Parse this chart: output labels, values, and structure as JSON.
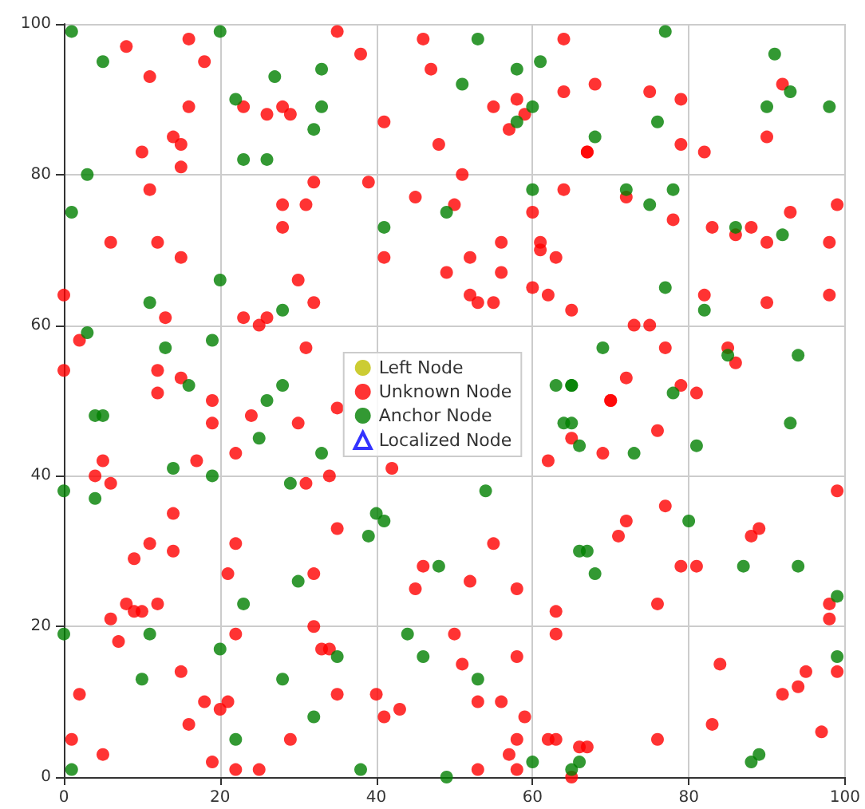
{
  "chart_data": {
    "type": "scatter",
    "xlim": [
      0,
      100
    ],
    "ylim": [
      0,
      100
    ],
    "xticks": [
      0,
      20,
      40,
      60,
      80,
      100
    ],
    "yticks": [
      0,
      20,
      40,
      60,
      80,
      100
    ],
    "grid": true,
    "legend": "center",
    "marker": "circle",
    "series": [
      {
        "name": "Left Node",
        "color": "#bfbf00"
      },
      {
        "name": "Unknown Node",
        "color": "#ff0000",
        "x": [
          8,
          16,
          18,
          11,
          16,
          14,
          15,
          10,
          15,
          23,
          26,
          28,
          29,
          11,
          28,
          31,
          32,
          6,
          12,
          28,
          15,
          30,
          0,
          32,
          13,
          23,
          25,
          26,
          2,
          0,
          31,
          12,
          15,
          12,
          19,
          35,
          38,
          46,
          47,
          55,
          58,
          64,
          64,
          59,
          57,
          41,
          48,
          67,
          39,
          51,
          45,
          50,
          64,
          60,
          41,
          56,
          61,
          61,
          52,
          63,
          49,
          56,
          60,
          62,
          52,
          53,
          55,
          65,
          70,
          68,
          75,
          79,
          67,
          79,
          82,
          92,
          90,
          72,
          78,
          83,
          86,
          88,
          90,
          93,
          99,
          98,
          82,
          90,
          98,
          73,
          75,
          77,
          85,
          86,
          72,
          70,
          79,
          81,
          19,
          24,
          30,
          22,
          5,
          17,
          4,
          6,
          31,
          14,
          11,
          22,
          14,
          9,
          21,
          32,
          8,
          9,
          10,
          12,
          6,
          7,
          22,
          32,
          15,
          2,
          18,
          21,
          20,
          16,
          1,
          29,
          5,
          19,
          22,
          25,
          35,
          34,
          42,
          35,
          55,
          46,
          45,
          52,
          58,
          63,
          63,
          50,
          33,
          34,
          51,
          58,
          35,
          40,
          41,
          43,
          53,
          56,
          59,
          58,
          62,
          63,
          66,
          57,
          58,
          53,
          65,
          65,
          62,
          69,
          76,
          99,
          77,
          72,
          71,
          88,
          89,
          79,
          81,
          76,
          98,
          98,
          99,
          84,
          95,
          94,
          92,
          83,
          76,
          97,
          67
        ],
        "values": [
          97,
          98,
          95,
          93,
          89,
          85,
          84,
          83,
          81,
          89,
          88,
          89,
          88,
          78,
          76,
          76,
          79,
          71,
          71,
          73,
          69,
          66,
          64,
          63,
          61,
          61,
          60,
          61,
          58,
          54,
          57,
          54,
          53,
          51,
          50,
          99,
          96,
          98,
          94,
          89,
          90,
          98,
          91,
          88,
          86,
          87,
          84,
          83,
          79,
          80,
          77,
          76,
          78,
          75,
          69,
          71,
          71,
          70,
          69,
          69,
          67,
          67,
          65,
          64,
          64,
          63,
          63,
          62,
          50,
          92,
          91,
          90,
          83,
          84,
          83,
          92,
          85,
          77,
          74,
          73,
          72,
          73,
          71,
          75,
          76,
          71,
          64,
          63,
          64,
          60,
          60,
          57,
          57,
          55,
          53,
          50,
          52,
          51,
          47,
          48,
          47,
          43,
          42,
          42,
          40,
          39,
          39,
          35,
          31,
          31,
          30,
          29,
          27,
          27,
          23,
          22,
          22,
          23,
          21,
          18,
          19,
          20,
          14,
          11,
          10,
          10,
          9,
          7,
          5,
          5,
          3,
          2,
          1,
          1,
          49,
          40,
          41,
          33,
          31,
          28,
          25,
          26,
          25,
          22,
          19,
          19,
          17,
          17,
          15,
          16,
          11,
          11,
          8,
          9,
          10,
          10,
          8,
          5,
          5,
          5,
          4,
          3,
          1,
          1,
          0,
          45,
          42,
          43,
          46,
          38,
          36,
          34,
          32,
          32,
          33,
          28,
          28,
          23,
          23,
          21,
          14,
          15,
          14,
          12,
          11,
          7,
          5,
          6,
          4
        ]
      },
      {
        "name": "Anchor Node",
        "color": "#008000",
        "x": [
          1,
          5,
          3,
          1,
          20,
          22,
          23,
          26,
          27,
          33,
          33,
          32,
          20,
          11,
          28,
          3,
          13,
          19,
          16,
          28,
          26,
          53,
          51,
          58,
          61,
          60,
          58,
          49,
          60,
          41,
          77,
          76,
          68,
          91,
          93,
          90,
          98,
          72,
          75,
          78,
          86,
          92,
          77,
          82,
          69,
          85,
          94,
          65,
          78,
          4,
          5,
          25,
          33,
          14,
          19,
          0,
          4,
          29,
          30,
          23,
          0,
          11,
          20,
          10,
          28,
          32,
          22,
          1,
          54,
          40,
          41,
          39,
          48,
          44,
          35,
          46,
          53,
          38,
          49,
          60,
          65,
          66,
          63,
          65,
          64,
          65,
          66,
          66,
          93,
          73,
          81,
          80,
          67,
          68,
          87,
          94,
          99,
          99,
          88,
          89
        ],
        "values": [
          99,
          95,
          80,
          75,
          99,
          90,
          82,
          82,
          93,
          94,
          89,
          86,
          66,
          63,
          62,
          59,
          57,
          58,
          52,
          52,
          50,
          98,
          92,
          94,
          95,
          89,
          87,
          75,
          78,
          73,
          99,
          87,
          85,
          96,
          91,
          89,
          89,
          78,
          76,
          78,
          73,
          72,
          65,
          62,
          57,
          56,
          56,
          52,
          51,
          48,
          48,
          45,
          43,
          41,
          40,
          38,
          37,
          39,
          26,
          23,
          19,
          19,
          17,
          13,
          13,
          8,
          5,
          1,
          38,
          35,
          34,
          32,
          28,
          19,
          16,
          16,
          13,
          1,
          0,
          2,
          1,
          2,
          52,
          52,
          47,
          47,
          44,
          30,
          47,
          43,
          44,
          34,
          30,
          27,
          28,
          28,
          24,
          16,
          2,
          3
        ]
      },
      {
        "name": "Localized Node",
        "color": "#0000ff",
        "marker": "triangle"
      }
    ]
  }
}
